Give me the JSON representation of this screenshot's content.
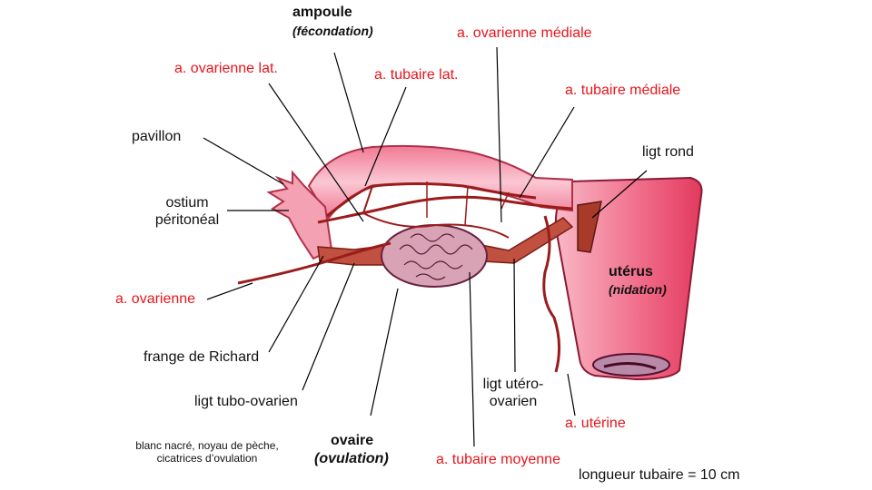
{
  "labels": {
    "ampoule": "ampoule",
    "fecondation": "(fécondation)",
    "a_ovarienne_mediale": "a. ovarienne médiale",
    "a_ovarienne_lat": "a. ovarienne lat.",
    "a_tubaire_lat": "a. tubaire lat.",
    "a_tubaire_mediale": "a. tubaire médiale",
    "pavillon": "pavillon",
    "ligt_rond": "ligt rond",
    "ostium_1": "ostium",
    "ostium_2": "péritonéal",
    "uterus": "utérus",
    "nidation": "(nidation)",
    "a_ovarienne": "a. ovarienne",
    "frange": "frange de Richard",
    "ligt_tubo": "ligt tubo-ovarien",
    "ligt_utero_1": "ligt utéro-",
    "ligt_utero_2": "ovarien",
    "a_uterine": "a. utérine",
    "ovaire": "ovaire",
    "ovulation": "(ovulation)",
    "a_tubaire_moyenne": "a. tubaire moyenne",
    "note_1": "blanc nacré, noyau de pèche,",
    "note_2": "cicatrices d’ovulation",
    "longueur": "longueur tubaire = 10 cm"
  },
  "colors": {
    "label_red": "#e8141b",
    "tube_pink": "#f08aa0",
    "uterus_pink": "#f36a86",
    "artery": "#9b1c1c",
    "ovary": "#d9a3b6"
  }
}
